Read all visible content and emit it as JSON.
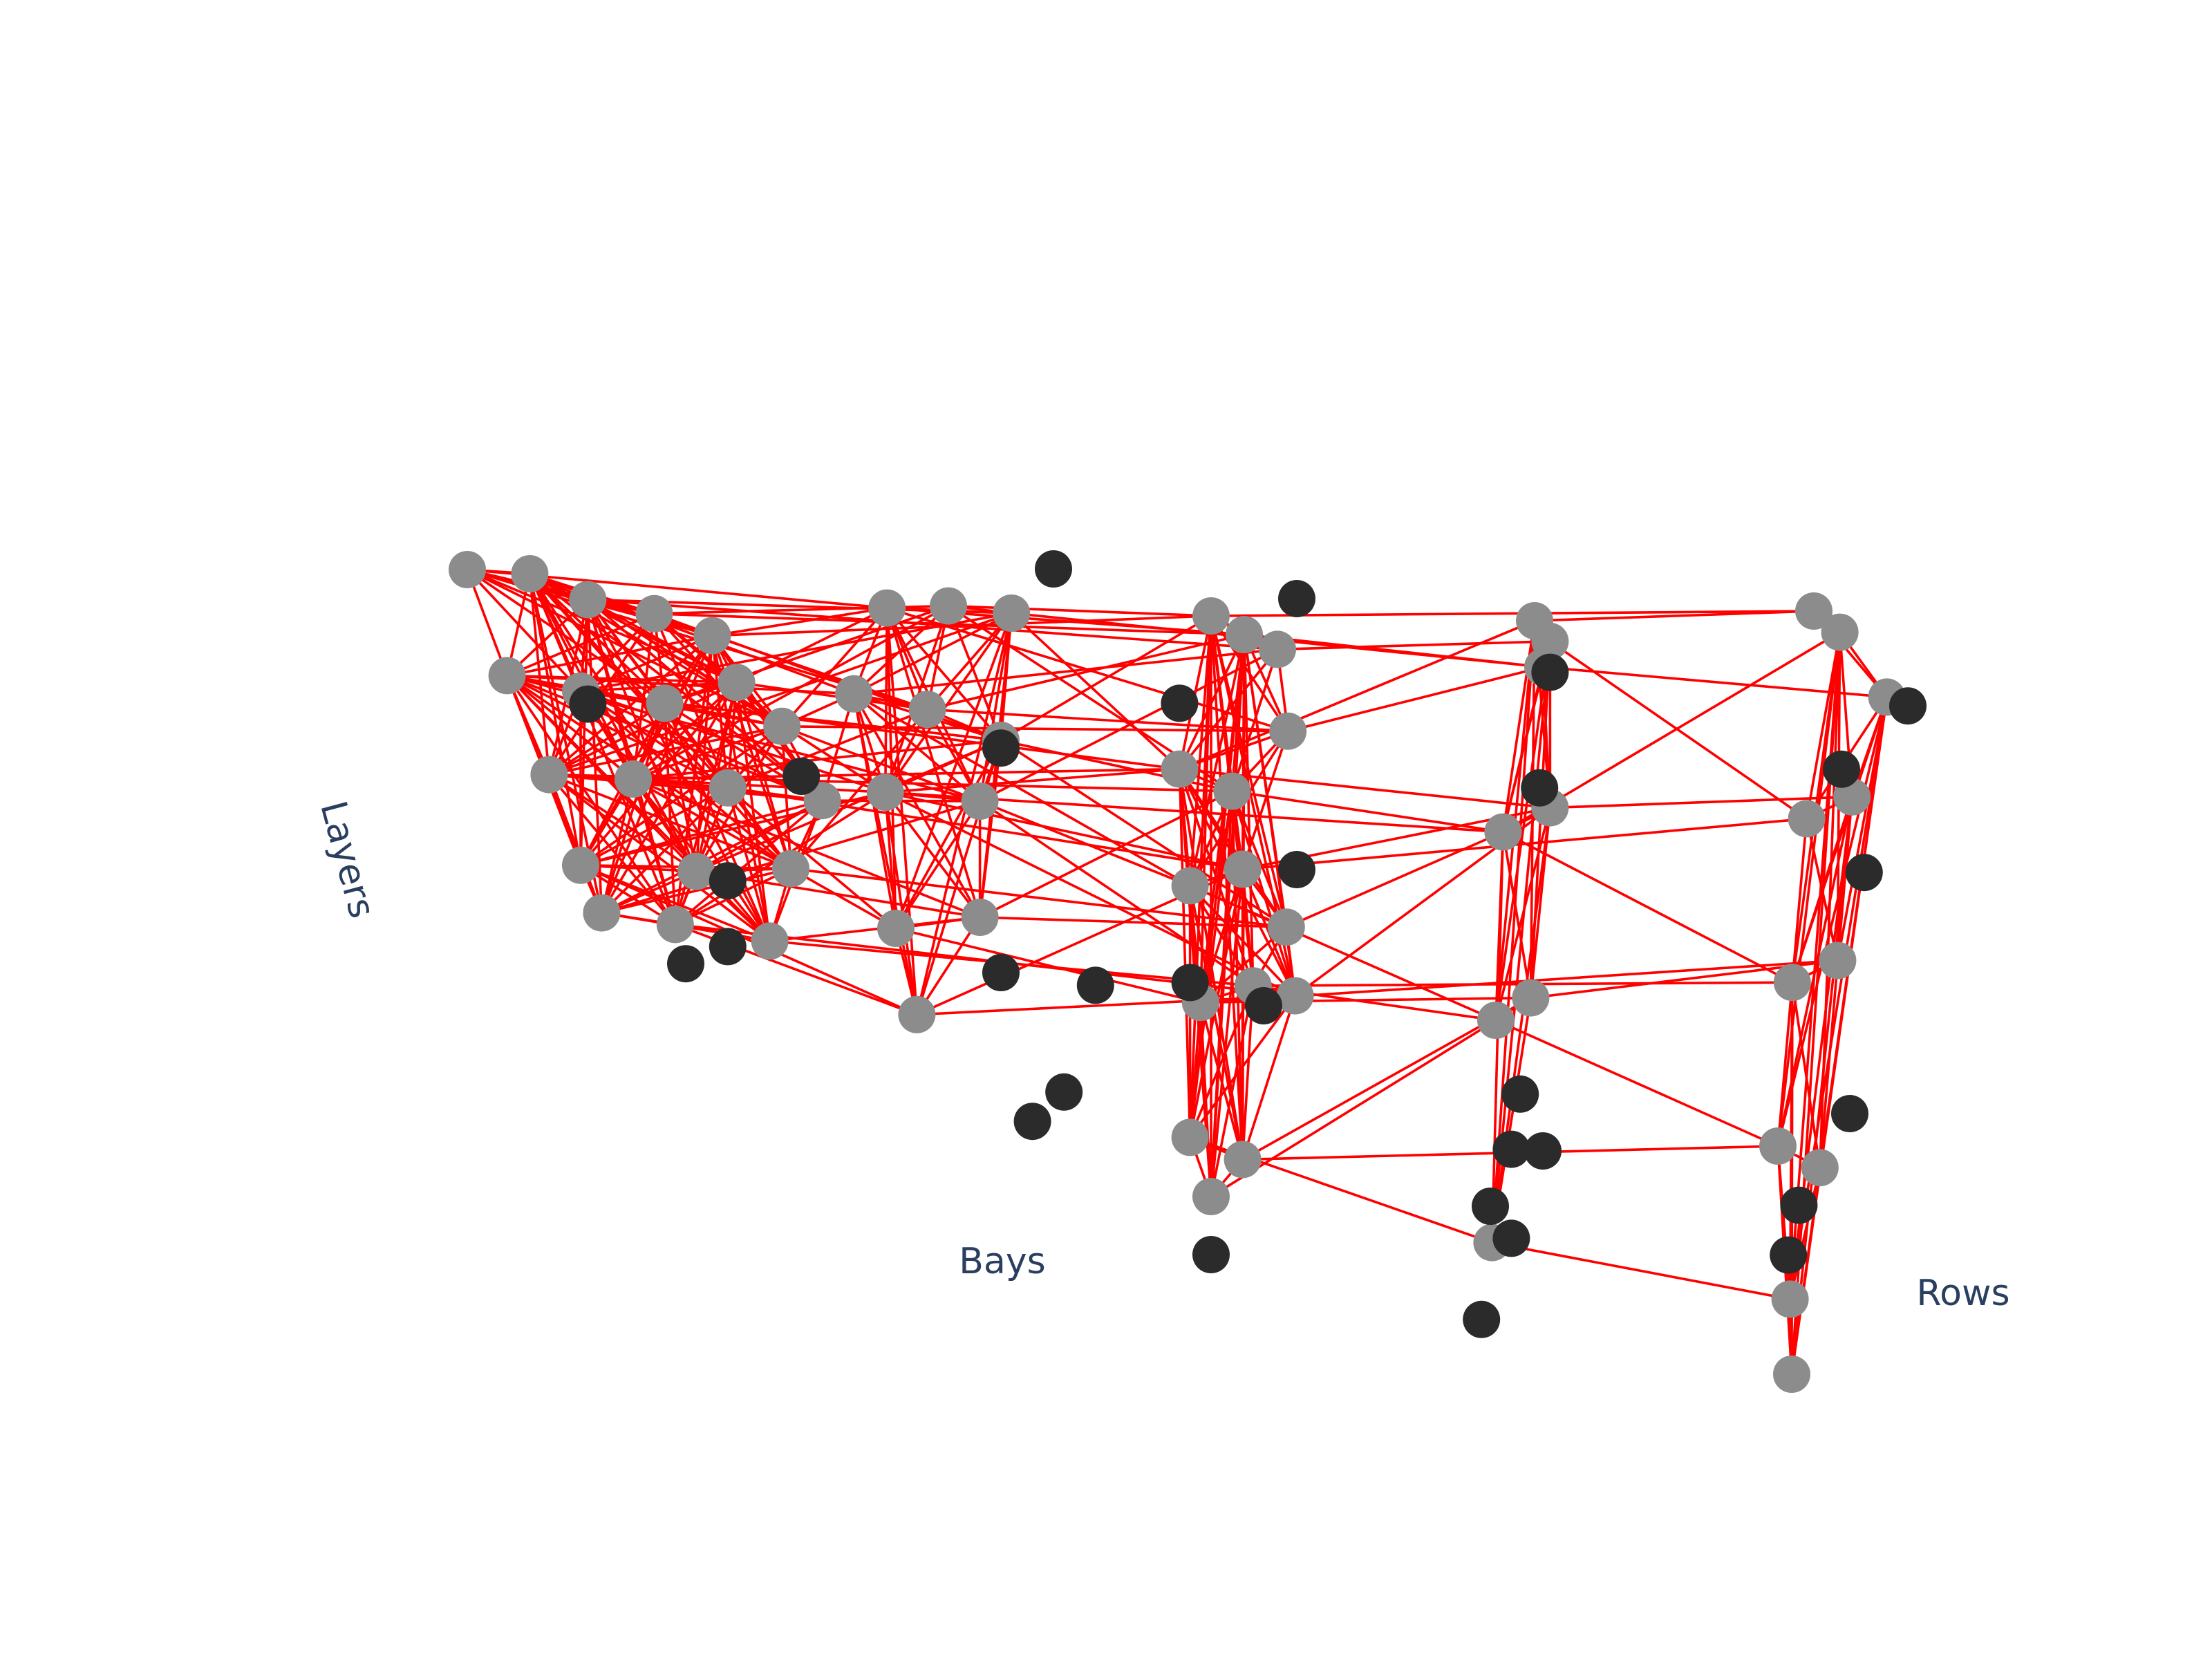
{
  "chart_data": {
    "type": "scatter",
    "subtype": "3d-network",
    "title": "",
    "axes": {
      "x": {
        "label": "Bays"
      },
      "y": {
        "label": "Rows"
      },
      "z": {
        "label": "Layers"
      }
    },
    "grid": false,
    "legend": "none",
    "colors": {
      "edges": "#ff0000",
      "connected_nodes": "#8c8c8c",
      "isolated_nodes": "#2b2b2b",
      "axis_text": "#2a3f5f",
      "background": "#ffffff"
    },
    "series": [
      {
        "mode": "markers",
        "marker_color": "#8c8c8c",
        "points": [
          {
            "x": 0.5,
            "y": 0.0,
            "z": 0.0
          },
          {
            "x": 1.0,
            "y": 0.6,
            "z": 0.04
          },
          {
            "x": 1.6,
            "y": 0.3,
            "z": 0.08
          },
          {
            "x": 2.2,
            "y": 0.5,
            "z": 0.12
          },
          {
            "x": 2.8,
            "y": 0.2,
            "z": 0.15
          },
          {
            "x": 0.8,
            "y": 0.5,
            "z": 0.3
          },
          {
            "x": 1.5,
            "y": 0.5,
            "z": 0.33
          },
          {
            "x": 2.3,
            "y": 0.5,
            "z": 0.35
          },
          {
            "x": 3.0,
            "y": 0.4,
            "z": 0.28
          },
          {
            "x": 3.4,
            "y": 0.6,
            "z": 0.4
          },
          {
            "x": 1.2,
            "y": 0.5,
            "z": 0.55
          },
          {
            "x": 2.0,
            "y": 0.5,
            "z": 0.55
          },
          {
            "x": 2.9,
            "y": 0.5,
            "z": 0.56
          },
          {
            "x": 3.8,
            "y": 0.5,
            "z": 0.58
          },
          {
            "x": 1.5,
            "y": 0.5,
            "z": 0.78
          },
          {
            "x": 2.6,
            "y": 0.5,
            "z": 0.78
          },
          {
            "x": 3.5,
            "y": 0.5,
            "z": 0.76
          },
          {
            "x": 1.7,
            "y": 0.5,
            "z": 0.9
          },
          {
            "x": 2.4,
            "y": 0.5,
            "z": 0.92
          },
          {
            "x": 3.3,
            "y": 0.5,
            "z": 0.95
          },
          {
            "x": 4.4,
            "y": 0.6,
            "z": 0.08
          },
          {
            "x": 5.0,
            "y": 0.5,
            "z": 0.06
          },
          {
            "x": 5.6,
            "y": 0.5,
            "z": 0.07
          },
          {
            "x": 4.1,
            "y": 0.5,
            "z": 0.3
          },
          {
            "x": 4.8,
            "y": 0.5,
            "z": 0.33
          },
          {
            "x": 5.5,
            "y": 0.5,
            "z": 0.4
          },
          {
            "x": 4.4,
            "y": 0.5,
            "z": 0.55
          },
          {
            "x": 5.3,
            "y": 0.5,
            "z": 0.56
          },
          {
            "x": 4.5,
            "y": 0.5,
            "z": 0.9
          },
          {
            "x": 5.3,
            "y": 0.5,
            "z": 0.86
          },
          {
            "x": 4.7,
            "y": 0.5,
            "z": 1.12
          },
          {
            "x": 7.5,
            "y": 0.5,
            "z": 0.05
          },
          {
            "x": 7.8,
            "y": 0.6,
            "z": 0.1
          },
          {
            "x": 8.1,
            "y": 0.7,
            "z": 0.14
          },
          {
            "x": 7.2,
            "y": 0.5,
            "z": 0.45
          },
          {
            "x": 7.7,
            "y": 0.5,
            "z": 0.5
          },
          {
            "x": 8.2,
            "y": 0.7,
            "z": 0.35
          },
          {
            "x": 7.3,
            "y": 0.5,
            "z": 0.75
          },
          {
            "x": 7.8,
            "y": 0.5,
            "z": 0.7
          },
          {
            "x": 8.2,
            "y": 0.6,
            "z": 0.85
          },
          {
            "x": 7.4,
            "y": 0.5,
            "z": 1.05
          },
          {
            "x": 7.9,
            "y": 0.5,
            "z": 1.0
          },
          {
            "x": 8.3,
            "y": 0.5,
            "z": 1.02
          },
          {
            "x": 7.3,
            "y": 0.5,
            "z": 1.4
          },
          {
            "x": 7.8,
            "y": 0.5,
            "z": 1.45
          },
          {
            "x": 7.5,
            "y": 0.5,
            "z": 1.55
          },
          {
            "x": 10.5,
            "y": 1.0,
            "z": 0.05
          },
          {
            "x": 10.6,
            "y": 1.3,
            "z": 0.12
          },
          {
            "x": 10.5,
            "y": 1.5,
            "z": 0.2
          },
          {
            "x": 10.2,
            "y": 1.0,
            "z": 0.6
          },
          {
            "x": 10.6,
            "y": 1.3,
            "z": 0.55
          },
          {
            "x": 10.1,
            "y": 1.2,
            "z": 1.1
          },
          {
            "x": 10.4,
            "y": 1.4,
            "z": 1.05
          },
          {
            "x": 10.0,
            "y": 1.6,
            "z": 1.7
          },
          {
            "x": 13.0,
            "y": 2.0,
            "z": 0.05
          },
          {
            "x": 13.2,
            "y": 2.3,
            "z": 0.12
          },
          {
            "x": 13.6,
            "y": 2.6,
            "z": 0.3
          },
          {
            "x": 12.9,
            "y": 2.2,
            "z": 0.6
          },
          {
            "x": 13.3,
            "y": 2.4,
            "z": 0.55
          },
          {
            "x": 12.7,
            "y": 2.6,
            "z": 1.05
          },
          {
            "x": 13.1,
            "y": 2.8,
            "z": 1.0
          },
          {
            "x": 12.5,
            "y": 3.0,
            "z": 1.5
          },
          {
            "x": 12.9,
            "y": 3.0,
            "z": 1.55
          },
          {
            "x": 12.6,
            "y": 3.1,
            "z": 1.9
          },
          {
            "x": 12.6,
            "y": 3.2,
            "z": 2.1
          }
        ]
      },
      {
        "mode": "markers",
        "marker_color": "#2b2b2b",
        "points": [
          {
            "x": 6.0,
            "y": 0.5,
            "z": -0.05
          },
          {
            "x": 8.3,
            "y": 0.6,
            "z": 0.0
          },
          {
            "x": 1.6,
            "y": 0.3,
            "z": 0.35
          },
          {
            "x": 5.5,
            "y": 0.5,
            "z": 0.42
          },
          {
            "x": 7.2,
            "y": 0.5,
            "z": 0.28
          },
          {
            "x": 3.6,
            "y": 0.5,
            "z": 0.52
          },
          {
            "x": 10.6,
            "y": 1.3,
            "z": 0.2
          },
          {
            "x": 13.8,
            "y": 2.6,
            "z": 0.32
          },
          {
            "x": 8.3,
            "y": 0.6,
            "z": 0.7
          },
          {
            "x": 10.5,
            "y": 1.3,
            "z": 0.5
          },
          {
            "x": 13.2,
            "y": 2.4,
            "z": 0.48
          },
          {
            "x": 2.9,
            "y": 0.5,
            "z": 0.8
          },
          {
            "x": 13.4,
            "y": 2.5,
            "z": 0.75
          },
          {
            "x": 2.5,
            "y": 0.5,
            "z": 1.02
          },
          {
            "x": 2.9,
            "y": 0.5,
            "z": 0.97
          },
          {
            "x": 7.3,
            "y": 0.5,
            "z": 1.0
          },
          {
            "x": 8.0,
            "y": 0.5,
            "z": 1.05
          },
          {
            "x": 5.5,
            "y": 0.5,
            "z": 1.0
          },
          {
            "x": 6.4,
            "y": 0.5,
            "z": 1.02
          },
          {
            "x": 6.1,
            "y": 0.5,
            "z": 1.3
          },
          {
            "x": 5.8,
            "y": 0.5,
            "z": 1.38
          },
          {
            "x": 10.3,
            "y": 1.4,
            "z": 1.3
          },
          {
            "x": 10.2,
            "y": 1.5,
            "z": 1.45
          },
          {
            "x": 10.5,
            "y": 1.5,
            "z": 1.45
          },
          {
            "x": 10.0,
            "y": 1.5,
            "z": 1.6
          },
          {
            "x": 10.2,
            "y": 1.5,
            "z": 1.68
          },
          {
            "x": 13.2,
            "y": 2.9,
            "z": 1.4
          },
          {
            "x": 12.7,
            "y": 3.0,
            "z": 1.65
          },
          {
            "x": 12.6,
            "y": 3.0,
            "z": 1.78
          },
          {
            "x": 7.5,
            "y": 0.5,
            "z": 1.7
          },
          {
            "x": 9.9,
            "y": 1.6,
            "z": 1.9
          }
        ]
      }
    ]
  }
}
